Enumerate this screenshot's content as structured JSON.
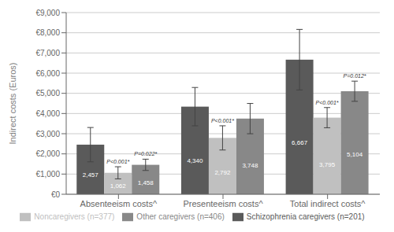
{
  "chart_data": {
    "type": "bar",
    "categories": [
      "Absenteeism costs^",
      "Presenteeism costs^",
      "Total indirect costs^"
    ],
    "series": [
      {
        "name": "Schizophrenia caregivers (n=201)",
        "color": "#5a5a5a",
        "values": [
          2457,
          4340,
          6667
        ],
        "value_labels": [
          "2,457",
          "4,340",
          "6,667"
        ],
        "errors": [
          850,
          950,
          1500
        ]
      },
      {
        "name": "Noncaregivers (n=377)",
        "color": "#c0c0c0",
        "values": [
          1062,
          2792,
          3795
        ],
        "value_labels": [
          "1,062",
          "2,792",
          "3,795"
        ],
        "errors": [
          300,
          600,
          500
        ]
      },
      {
        "name": "Other caregivers (n=406)",
        "color": "#888888",
        "values": [
          1458,
          3748,
          5104
        ],
        "value_labels": [
          "1,458",
          "3,748",
          "5,104"
        ],
        "errors": [
          280,
          750,
          500
        ]
      }
    ],
    "ylabel": "Indirect costs (Euros)",
    "ylim": [
      0,
      9000
    ],
    "yticks": [
      {
        "value": 0,
        "label": "€0"
      },
      {
        "value": 1000,
        "label": "€1,000"
      },
      {
        "value": 2000,
        "label": "€2,000"
      },
      {
        "value": 3000,
        "label": "€3,000"
      },
      {
        "value": 4000,
        "label": "€4,000"
      },
      {
        "value": 5000,
        "label": "€5,000"
      },
      {
        "value": 6000,
        "label": "€6,000"
      },
      {
        "value": 7000,
        "label": "€7,000"
      },
      {
        "value": 8000,
        "label": "€8,000"
      },
      {
        "value": 9000,
        "label": "€9,000"
      }
    ],
    "annotations": [
      {
        "text": "P<0.001*",
        "category": "Absenteeism costs^",
        "series": "Noncaregivers (n=377)"
      },
      {
        "text": "P=0.022*",
        "category": "Absenteeism costs^",
        "series": "Other caregivers (n=406)"
      },
      {
        "text": "P<0.001*",
        "category": "Presenteeism costs^",
        "series": "Noncaregivers (n=377)"
      },
      {
        "text": "P<0.001*",
        "category": "Total indirect costs^",
        "series": "Noncaregivers (n=377)"
      },
      {
        "text": "P=0.012*",
        "category": "Total indirect costs^",
        "series": "Other caregivers (n=406)"
      }
    ],
    "data_labels": true,
    "grid": true,
    "legend": "bottom"
  }
}
